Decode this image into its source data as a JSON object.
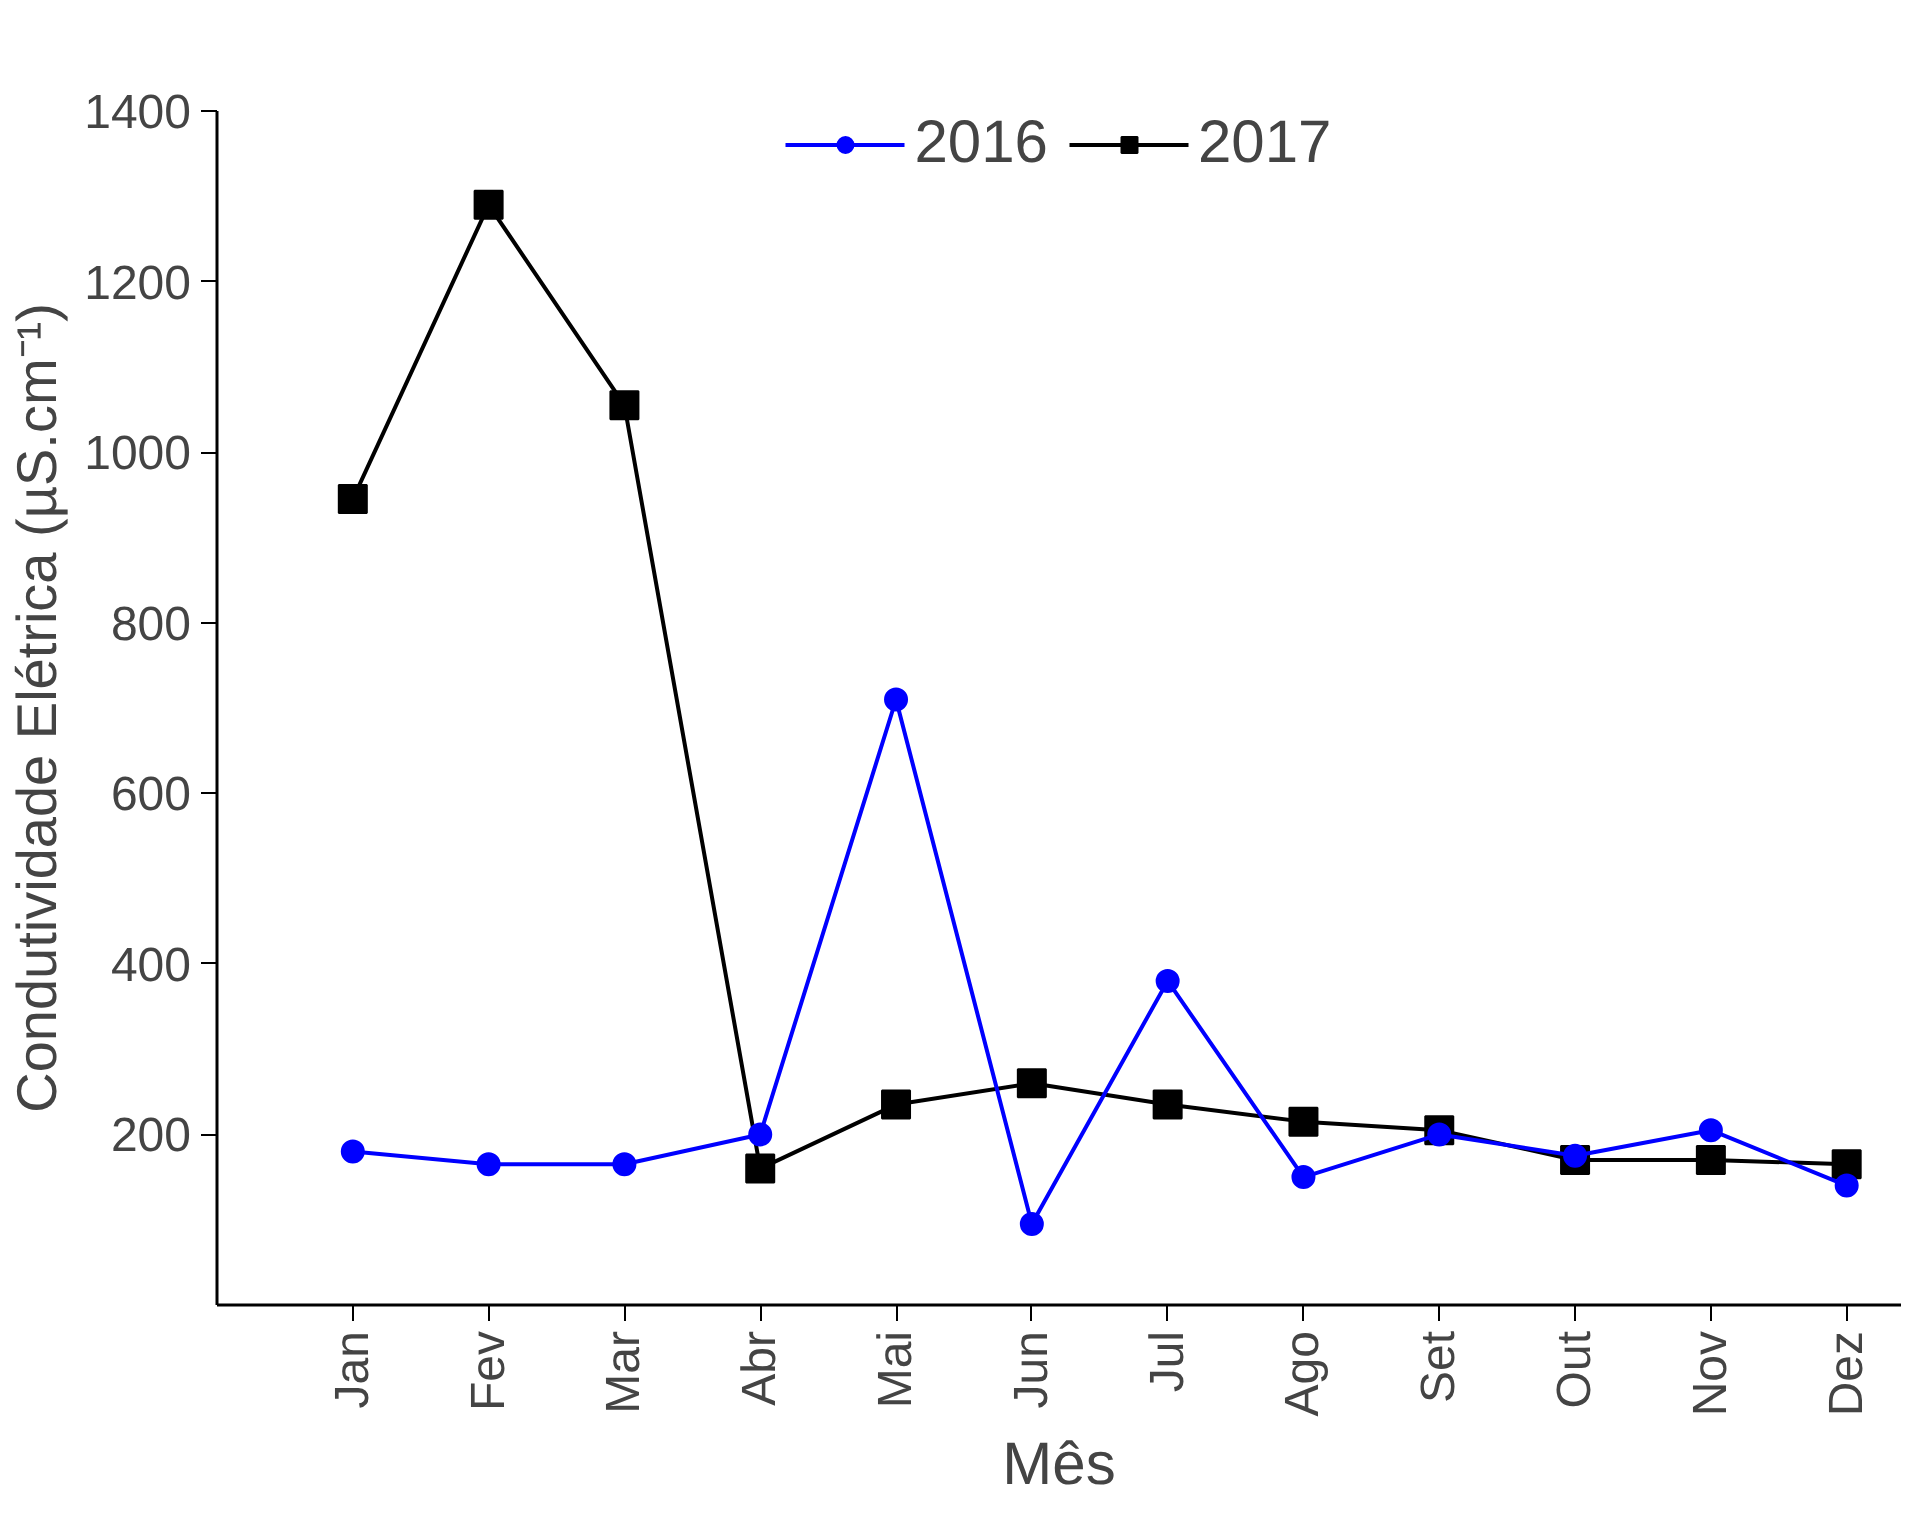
{
  "chart_data": {
    "type": "line",
    "xlabel": "Mês",
    "ylabel": "Condutividade Elétrica (µS.cm⁻¹)",
    "categories": [
      "Jan",
      "Fev",
      "Mar",
      "Abr",
      "Mai",
      "Jun",
      "Jul",
      "Ago",
      "Set",
      "Out",
      "Nov",
      "Dez"
    ],
    "series": [
      {
        "name": "2016",
        "color": "#0000ff",
        "marker": "circle",
        "values": [
          180,
          165,
          165,
          200,
          710,
          95,
          380,
          150,
          200,
          175,
          205,
          140
        ]
      },
      {
        "name": "2017",
        "color": "#000000",
        "marker": "square",
        "values": [
          945,
          1290,
          1055,
          160,
          235,
          260,
          235,
          215,
          205,
          170,
          170,
          165
        ]
      }
    ],
    "ylim": [
      0,
      1400
    ],
    "yticks": [
      200,
      400,
      600,
      800,
      1000,
      1200,
      1400
    ],
    "grid": false,
    "legend": "top",
    "line_style": "solid"
  }
}
